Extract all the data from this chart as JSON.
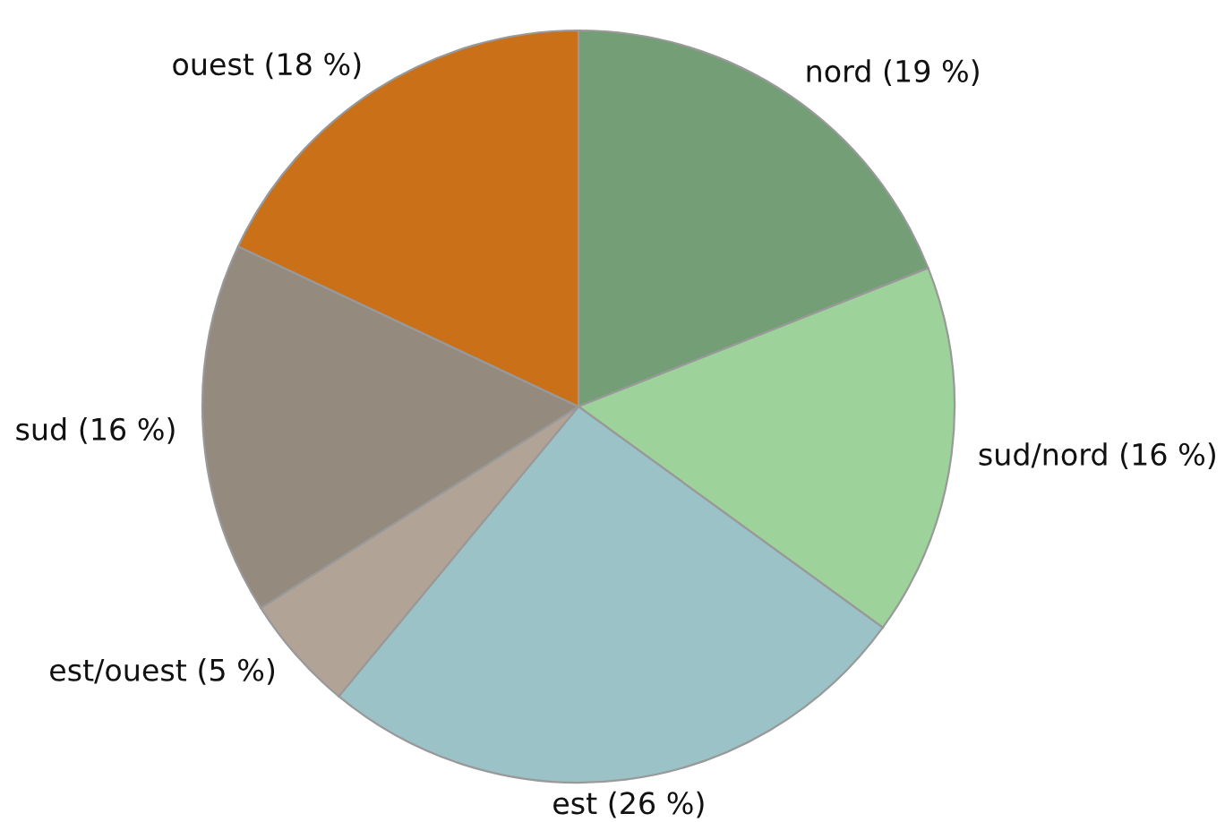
{
  "chart_data": {
    "type": "pie",
    "categories": [
      "nord (19 %)",
      "sud/nord (16 %)",
      "est (26 %)",
      "est/ouest (5 %)",
      "sud (16 %)",
      "ouest (18 %)"
    ],
    "values": [
      19,
      16,
      26,
      5,
      16,
      18
    ],
    "colors": [
      "#739e76",
      "#9dd29b",
      "#9bc3c7",
      "#b1a497",
      "#948a7e",
      "#c97018"
    ]
  }
}
